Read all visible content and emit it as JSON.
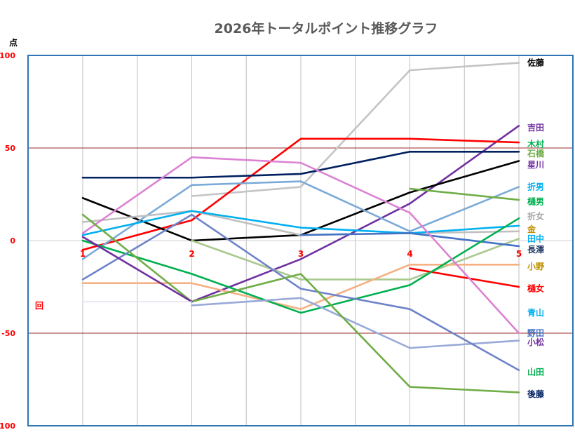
{
  "chart_data": {
    "type": "line",
    "title": "2026年トータルポイント推移グラフ",
    "ylabel": "点",
    "xlabel": "回",
    "ylim": [
      -100,
      100
    ],
    "yticks": [
      100,
      50,
      0,
      -50,
      -100
    ],
    "x": [
      1,
      2,
      3,
      4,
      5
    ],
    "x_tick_labels": [
      "1",
      "2",
      "3",
      "4",
      "5"
    ],
    "grid": true,
    "legend": "right (labels at line ends)",
    "series": [
      {
        "name": "佐藤",
        "color": "#c4c4c4",
        "values": [
          null,
          24,
          29,
          92,
          96
        ]
      },
      {
        "name": "吉田",
        "color": "#7030a0",
        "values": [
          null,
          -33,
          -10,
          20,
          62
        ]
      },
      {
        "name": "木村",
        "color": "#ff0000",
        "values": [
          -5,
          11,
          55,
          55,
          53
        ]
      },
      {
        "name": "石橋",
        "color": "#002060",
        "values": [
          34,
          34,
          36,
          48,
          48
        ]
      },
      {
        "name": "星川",
        "color": "#000000",
        "values": [
          23,
          0,
          3,
          26,
          43
        ]
      },
      {
        "name": "折男",
        "color": "#7aaad8",
        "values": [
          -10,
          30,
          32,
          5,
          29
        ]
      },
      {
        "name": "樋男",
        "color": "#70ad47",
        "values": [
          null,
          null,
          null,
          28,
          22
        ]
      },
      {
        "name": "折女",
        "color": "#c0c0c0",
        "values": [
          10,
          16,
          3,
          4,
          5
        ]
      },
      {
        "name": "金",
        "color": "#a9c98f",
        "values": [
          null,
          0,
          -21,
          -21,
          1
        ]
      },
      {
        "name": "田中",
        "color": "#00b0f0",
        "values": [
          3,
          16,
          7,
          4,
          8
        ]
      },
      {
        "name": "長澤",
        "color": "#4472c4",
        "values": [
          null,
          null,
          3,
          4,
          -3
        ]
      },
      {
        "name": "小野",
        "color": "#f4b183",
        "values": [
          -23,
          -23,
          -37,
          -13,
          -13
        ]
      },
      {
        "name": "樋女",
        "color": "#ff0000",
        "values": [
          null,
          null,
          null,
          -15,
          -25
        ]
      },
      {
        "name": "青山",
        "color": "#00b050",
        "values": [
          0,
          -18,
          -39,
          -24,
          12
        ]
      },
      {
        "name": "野田",
        "color": "#dc82d2",
        "values": [
          4,
          45,
          42,
          15,
          -50
        ]
      },
      {
        "name": "小松",
        "color": "#99a9d8",
        "values": [
          null,
          -35,
          -31,
          -58,
          -54
        ]
      },
      {
        "name": "山田",
        "color": "#6f83c8",
        "values": [
          -21,
          14,
          -26,
          -37,
          -70
        ]
      },
      {
        "name": "後藤",
        "color": "#70ad47",
        "values": [
          14,
          -33,
          -18,
          -79,
          -82
        ]
      },
      {
        "name": "",
        "color": "#7030a0",
        "values": [
          2,
          -33,
          null,
          null,
          null
        ]
      },
      {
        "name": "",
        "color": "#d9d9f0",
        "values": [
          -33,
          -33,
          null,
          null,
          null
        ]
      }
    ],
    "end_labels": [
      {
        "text": "佐藤",
        "color": "#000000",
        "value": 96
      },
      {
        "text": "吉田",
        "color": "#7030a0",
        "value": 61
      },
      {
        "text": "木村",
        "color": "#00b050",
        "value": 52
      },
      {
        "text": "石橋",
        "color": "#70ad47",
        "value": 47
      },
      {
        "text": "星川",
        "color": "#7030a0",
        "value": 41
      },
      {
        "text": "折男",
        "color": "#00b0f0",
        "value": 29
      },
      {
        "text": "樋男",
        "color": "#00b050",
        "value": 21
      },
      {
        "text": "折女",
        "color": "#a6a6a6",
        "value": 13
      },
      {
        "text": "金",
        "color": "#c09000",
        "value": 6
      },
      {
        "text": "田中",
        "color": "#00b0f0",
        "value": 1
      },
      {
        "text": "長澤",
        "color": "#203864",
        "value": -5
      },
      {
        "text": "小野",
        "color": "#c09000",
        "value": -14
      },
      {
        "text": "樋女",
        "color": "#ff0000",
        "value": -26
      },
      {
        "text": "青山",
        "color": "#00b0f0",
        "value": -39
      },
      {
        "text": "野田",
        "color": "#4472c4",
        "value": -50
      },
      {
        "text": "小松",
        "color": "#7030a0",
        "value": -55
      },
      {
        "text": "山田",
        "color": "#00b050",
        "value": -71
      },
      {
        "text": "後藤",
        "color": "#002060",
        "value": -83
      }
    ]
  },
  "colors": {
    "title": "#595959",
    "axis_label": "#ff0000",
    "plot_border": "#2e75b6",
    "reference_line": "#9c2a2a",
    "grid": "#bfbfbf"
  }
}
